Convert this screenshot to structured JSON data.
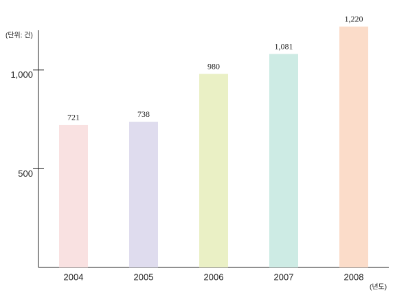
{
  "chart_data": {
    "type": "bar",
    "y_unit_label": "(단위: 건)",
    "x_unit_label": "(년도)",
    "categories": [
      "2004",
      "2005",
      "2006",
      "2007",
      "2008"
    ],
    "values": [
      721,
      738,
      980,
      1081,
      1220
    ],
    "value_labels": [
      "721",
      "738",
      "980",
      "1,081",
      "1,220"
    ],
    "colors": [
      "#f9e1e1",
      "#dfdcee",
      "#eaf0c5",
      "#cdebe4",
      "#fbdcc9"
    ],
    "ylim": [
      0,
      1250
    ],
    "yticks": [
      500,
      {
        "value": 1000,
        "label": "1,000"
      }
    ],
    "grid": false
  }
}
